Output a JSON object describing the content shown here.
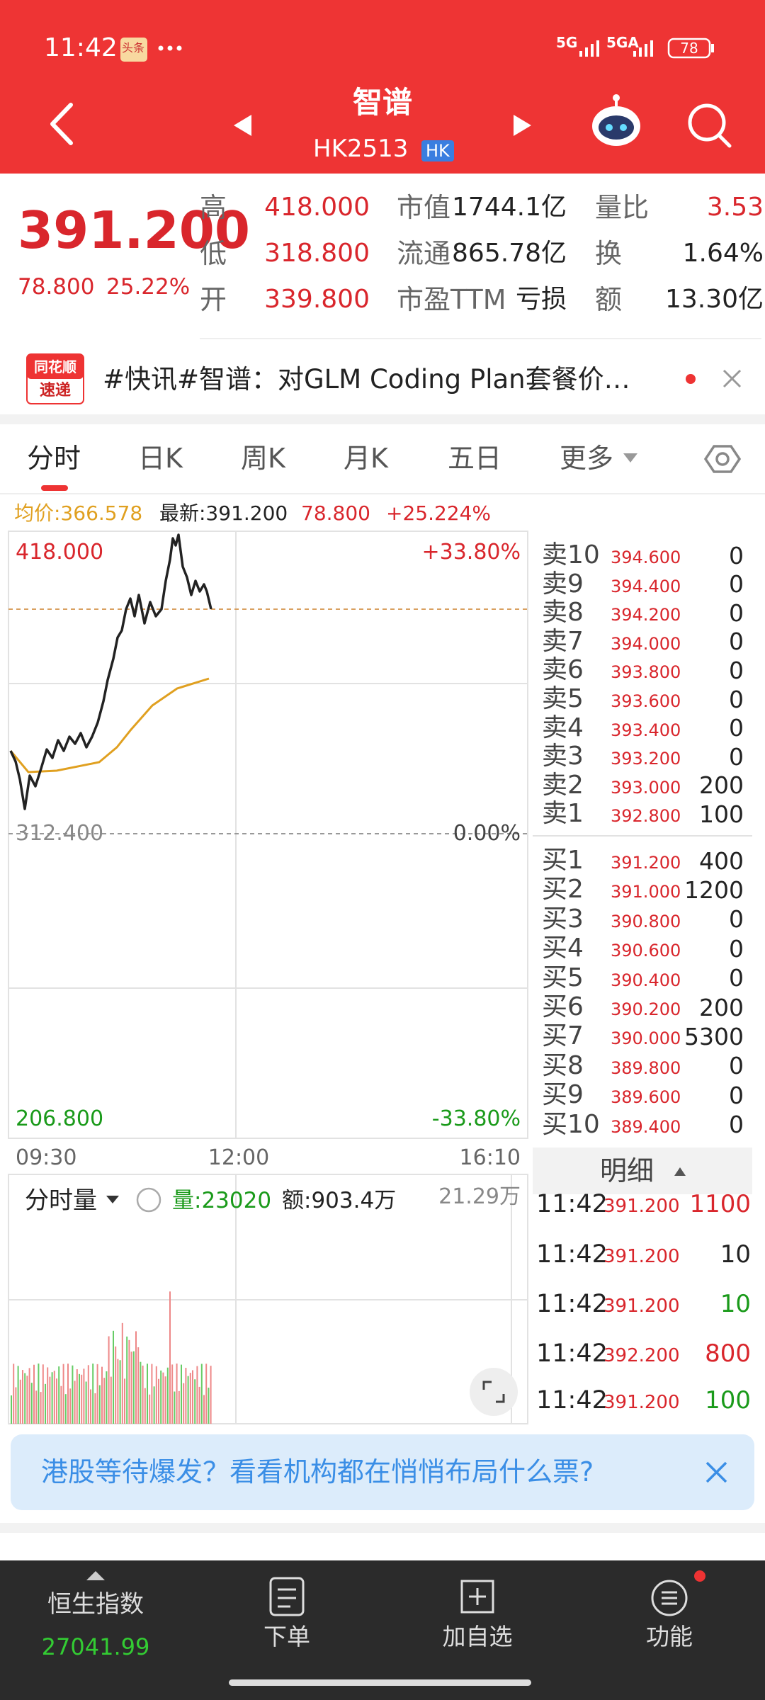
{
  "status_bar": {
    "time": "11:42",
    "badge": "头条",
    "net1": "5G",
    "net2": "5GA",
    "battery": "78"
  },
  "header": {
    "title": "智谱",
    "code": "HK2513",
    "market": "HK"
  },
  "quote": {
    "price": "391.200",
    "change": "78.800",
    "change_pct": "25.22%",
    "fields": [
      {
        "label": "高",
        "value": "418.000"
      },
      {
        "label": "低",
        "value": "318.800"
      },
      {
        "label": "开",
        "value": "339.800"
      },
      {
        "label": "市值",
        "value": "1744.1亿"
      },
      {
        "label": "流通",
        "value": "865.78亿"
      },
      {
        "label": "市盈TTM",
        "value": "亏损"
      },
      {
        "label": "量比",
        "value": "3.53"
      },
      {
        "label": "换",
        "value": "1.64%"
      },
      {
        "label": "额",
        "value": "13.30亿"
      }
    ]
  },
  "news": {
    "source_top": "同花顺",
    "source_bottom": "速递",
    "text": "#快讯#智谱：对GLM Coding Plan套餐价…"
  },
  "tabs": [
    "分时",
    "日K",
    "周K",
    "月K",
    "五日",
    "更多"
  ],
  "info": {
    "avg": "均价:366.578",
    "latest": "最新:391.200",
    "change": "78.800",
    "pct": "+25.224%"
  },
  "chart": {
    "high": "418.000",
    "high_pct": "+33.80%",
    "base": "312.400",
    "base_pct": "0.00%",
    "low": "206.800",
    "low_pct": "-33.80%",
    "times": [
      "09:30",
      "12:00",
      "16:10"
    ]
  },
  "volume": {
    "label": "分时量",
    "vol": "量:23020",
    "amount": "额:903.4万",
    "max": "21.29万"
  },
  "order_book": {
    "asks": [
      {
        "label": "卖10",
        "price": "394.600",
        "qty": "0"
      },
      {
        "label": "卖9",
        "price": "394.400",
        "qty": "0"
      },
      {
        "label": "卖8",
        "price": "394.200",
        "qty": "0"
      },
      {
        "label": "卖7",
        "price": "394.000",
        "qty": "0"
      },
      {
        "label": "卖6",
        "price": "393.800",
        "qty": "0"
      },
      {
        "label": "卖5",
        "price": "393.600",
        "qty": "0"
      },
      {
        "label": "卖4",
        "price": "393.400",
        "qty": "0"
      },
      {
        "label": "卖3",
        "price": "393.200",
        "qty": "0"
      },
      {
        "label": "卖2",
        "price": "393.000",
        "qty": "200"
      },
      {
        "label": "卖1",
        "price": "392.800",
        "qty": "100"
      }
    ],
    "bids": [
      {
        "label": "买1",
        "price": "391.200",
        "qty": "400"
      },
      {
        "label": "买2",
        "price": "391.000",
        "qty": "1200"
      },
      {
        "label": "买3",
        "price": "390.800",
        "qty": "0"
      },
      {
        "label": "买4",
        "price": "390.600",
        "qty": "0"
      },
      {
        "label": "买5",
        "price": "390.400",
        "qty": "0"
      },
      {
        "label": "买6",
        "price": "390.200",
        "qty": "200"
      },
      {
        "label": "买7",
        "price": "390.000",
        "qty": "5300"
      },
      {
        "label": "买8",
        "price": "389.800",
        "qty": "0"
      },
      {
        "label": "买9",
        "price": "389.600",
        "qty": "0"
      },
      {
        "label": "买10",
        "price": "389.400",
        "qty": "0"
      }
    ]
  },
  "details": {
    "header": "明细",
    "trades": [
      {
        "time": "11:42",
        "price": "391.200",
        "qty": "1100",
        "qty_color": "#d9262c"
      },
      {
        "time": "11:42",
        "price": "391.200",
        "qty": "10",
        "qty_color": "#222222"
      },
      {
        "time": "11:42",
        "price": "391.200",
        "qty": "10",
        "qty_color": "#1a9a1a"
      },
      {
        "time": "11:42",
        "price": "392.200",
        "qty": "800",
        "qty_color": "#d9262c"
      },
      {
        "time": "11:42",
        "price": "391.200",
        "qty": "100",
        "qty_color": "#1a9a1a"
      }
    ]
  },
  "banner": {
    "text": "港股等待爆发？看看机构都在悄悄布局什么票?"
  },
  "nav": {
    "index_name": "恒生指数",
    "index_value": "27041.99",
    "items": [
      "下单",
      "加自选",
      "功能"
    ]
  }
}
